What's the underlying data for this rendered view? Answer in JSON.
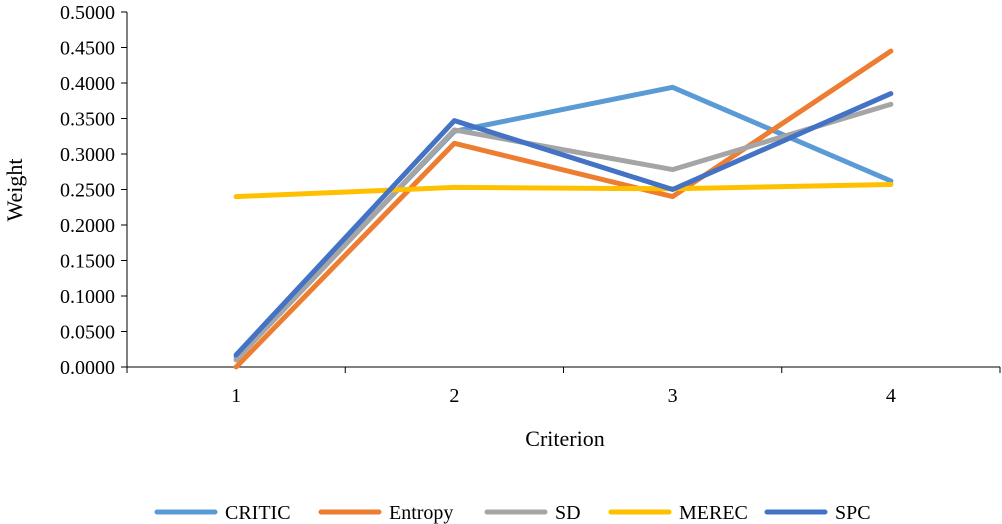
{
  "chart_data": {
    "type": "line",
    "title": "",
    "xlabel": "Criterion",
    "ylabel": "Weight",
    "categories": [
      "1",
      "2",
      "3",
      "4"
    ],
    "ylim": [
      0,
      0.5
    ],
    "yticks": [
      "0.0000",
      "0.0500",
      "0.1000",
      "0.1500",
      "0.2000",
      "0.2500",
      "0.3000",
      "0.3500",
      "0.4000",
      "0.4500",
      "0.5000"
    ],
    "grid": false,
    "legend_position": "bottom",
    "series": [
      {
        "name": "CRITIC",
        "color": "#5B9BD5",
        "values": [
          0.014,
          0.332,
          0.394,
          0.262
        ]
      },
      {
        "name": "Entropy",
        "color": "#ED7D31",
        "values": [
          0.0,
          0.315,
          0.24,
          0.445
        ]
      },
      {
        "name": "SD",
        "color": "#A5A5A5",
        "values": [
          0.01,
          0.334,
          0.278,
          0.37
        ]
      },
      {
        "name": "MEREC",
        "color": "#FFC000",
        "values": [
          0.24,
          0.253,
          0.251,
          0.257
        ]
      },
      {
        "name": "SPC",
        "color": "#4472C4",
        "values": [
          0.017,
          0.347,
          0.25,
          0.385
        ]
      }
    ]
  }
}
